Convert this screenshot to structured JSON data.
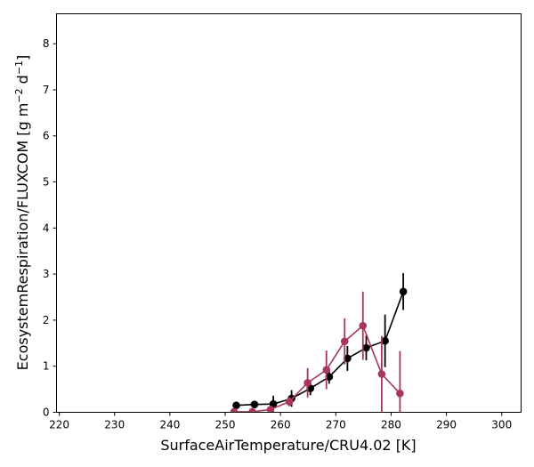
{
  "chart_data": {
    "type": "line",
    "xlabel": "SurfaceAirTemperature/CRU4.02 [K]",
    "ylabel_prefix": "EcosystemRespiration/FLUXCOM [g m",
    "ylabel_sup1": "−2",
    "ylabel_mid": " d",
    "ylabel_sup2": "−1",
    "ylabel_suffix": "]",
    "xlim": [
      219.5,
      303.5
    ],
    "ylim": [
      0,
      8.65
    ],
    "xticks": [
      220,
      230,
      240,
      250,
      260,
      270,
      280,
      290,
      300
    ],
    "yticks": [
      0,
      1,
      2,
      3,
      4,
      5,
      6,
      7,
      8
    ],
    "series": [
      {
        "color": "#000000",
        "points": [
          {
            "x": 252.0,
            "y": 0.15,
            "err": 0.0
          },
          {
            "x": 255.3,
            "y": 0.17,
            "err": 0.0
          },
          {
            "x": 258.7,
            "y": 0.18,
            "err": 0.18
          },
          {
            "x": 262.0,
            "y": 0.3,
            "err": 0.18
          },
          {
            "x": 265.4,
            "y": 0.52,
            "err": 0.15
          },
          {
            "x": 268.8,
            "y": 0.77,
            "err": 0.15
          },
          {
            "x": 272.1,
            "y": 1.17,
            "err": 0.27
          },
          {
            "x": 275.5,
            "y": 1.4,
            "err": 0.27
          },
          {
            "x": 278.9,
            "y": 1.55,
            "err": 0.57
          },
          {
            "x": 282.2,
            "y": 2.62,
            "err": 0.4
          }
        ]
      },
      {
        "color": "#a8375a",
        "points": [
          {
            "x": 251.6,
            "y": 0.01,
            "err": 0.02
          },
          {
            "x": 254.9,
            "y": 0.01,
            "err": 0.02
          },
          {
            "x": 258.2,
            "y": 0.06,
            "err": 0.08
          },
          {
            "x": 261.6,
            "y": 0.23,
            "err": 0.1
          },
          {
            "x": 264.9,
            "y": 0.64,
            "err": 0.32
          },
          {
            "x": 268.3,
            "y": 0.92,
            "err": 0.42
          },
          {
            "x": 271.6,
            "y": 1.54,
            "err": 0.5
          },
          {
            "x": 274.9,
            "y": 1.88,
            "err": 0.74
          },
          {
            "x": 278.3,
            "y": 0.83,
            "err": 0.83
          },
          {
            "x": 281.6,
            "y": 0.41,
            "err": 0.92
          }
        ]
      }
    ]
  }
}
